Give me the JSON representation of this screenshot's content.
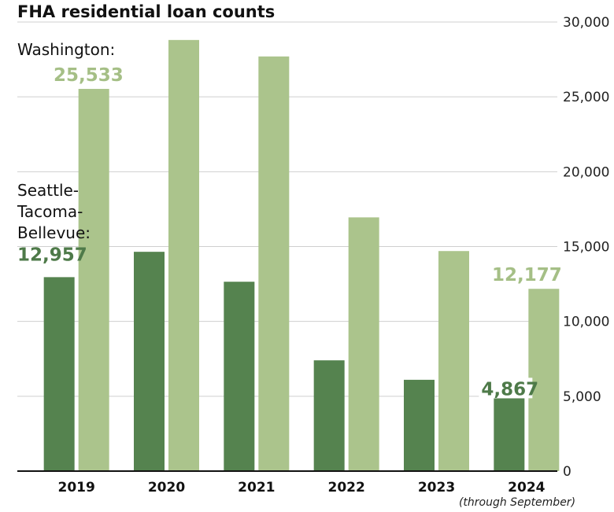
{
  "chart_data": {
    "type": "bar",
    "title": "FHA residential loan counts",
    "categories": [
      "2019",
      "2020",
      "2021",
      "2022",
      "2023",
      "2024"
    ],
    "category_note": "(through September)",
    "series": [
      {
        "name": "Seattle-Tacoma-Bellevue:",
        "name_lines": [
          "Seattle-",
          "Tacoma-",
          "Bellevue:"
        ],
        "color": "#55834f",
        "values": [
          12957,
          14650,
          12650,
          7400,
          6100,
          4867
        ]
      },
      {
        "name": "Washington:",
        "color": "#abc48c",
        "values": [
          25533,
          28800,
          27700,
          16950,
          14700,
          12177
        ]
      }
    ],
    "data_labels": [
      {
        "series": 0,
        "index": 0,
        "text": "12,957"
      },
      {
        "series": 1,
        "index": 0,
        "text": "25,533"
      },
      {
        "series": 0,
        "index": 5,
        "text": "4,867"
      },
      {
        "series": 1,
        "index": 5,
        "text": "12,177"
      }
    ],
    "yticks": [
      0,
      5000,
      10000,
      15000,
      20000,
      25000,
      30000
    ],
    "ytick_labels": [
      "0",
      "5,000",
      "10,000",
      "15,000",
      "20,000",
      "25,000",
      "30,000"
    ],
    "ylim": [
      0,
      30000
    ],
    "y_axis_side": "right",
    "grid": true,
    "xlabel": "",
    "ylabel": ""
  }
}
